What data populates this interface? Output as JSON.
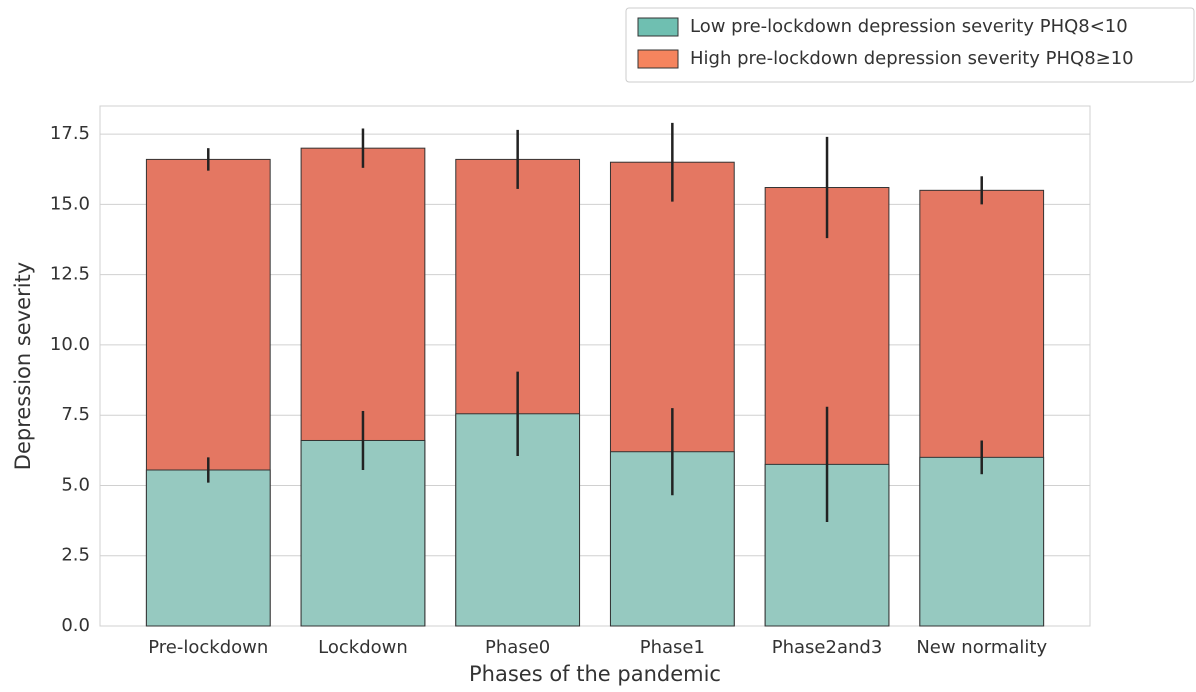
{
  "chart_data": {
    "type": "bar",
    "x_label": "Phases of the pandemic",
    "y_label": "Depression severity",
    "categories": [
      "Pre-lockdown",
      "Lockdown",
      "Phase0",
      "Phase1",
      "Phase2and3",
      "New normality"
    ],
    "series": [
      {
        "name": "High pre-lockdown depression severity PHQ8≥10",
        "color": "#e47762",
        "legend_color": "#f5845e",
        "values": [
          16.6,
          17.0,
          16.6,
          16.5,
          15.6,
          15.5
        ],
        "errors": [
          0.4,
          0.7,
          1.05,
          1.4,
          1.8,
          0.5
        ]
      },
      {
        "name": "Low pre-lockdown depression severity PHQ8<10",
        "color": "#96c9c0",
        "legend_color": "#6fbfb1",
        "values": [
          5.55,
          6.6,
          7.55,
          6.2,
          5.75,
          6.0
        ],
        "errors": [
          0.45,
          1.05,
          1.5,
          1.55,
          2.05,
          0.6
        ]
      }
    ],
    "legend_order": [
      1,
      0
    ],
    "ylim": [
      0,
      18.5
    ],
    "yticks": [
      {
        "value": 0,
        "label": "0.0"
      },
      2.5,
      {
        "value": 5,
        "label": "5.0"
      },
      7.5,
      {
        "value": 10,
        "label": "10.0"
      },
      12.5,
      {
        "value": 15,
        "label": "15.0"
      },
      17.5
    ],
    "grid": true
  }
}
